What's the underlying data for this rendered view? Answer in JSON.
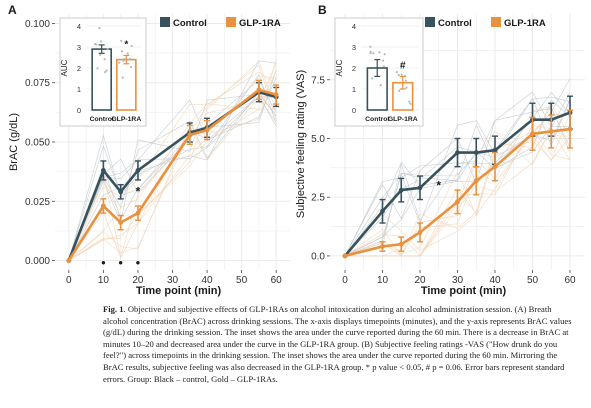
{
  "figure": {
    "colors": {
      "control": "#37515d",
      "glp1ra": "#e8913f",
      "grid": "#ebebeb",
      "faint_ctrl": "#b9c2c7",
      "faint_glp": "#f3cfae"
    },
    "panels": [
      {
        "label": "A",
        "ylabel": "BrAC (g/dL)",
        "xlabel": "Time point (min)",
        "yticks": [
          "0.000",
          "0.025",
          "0.050",
          "0.075",
          "0.100"
        ],
        "xticks": [
          "0",
          "10",
          "20",
          "30",
          "40",
          "50",
          "60"
        ],
        "legend": [
          "Control",
          "GLP-1RA"
        ],
        "annotations": {
          "dot_marker": "•",
          "star_marker": "*"
        },
        "inset": {
          "ylabel": "AUC",
          "yticks": [
            "0",
            "1",
            "2",
            "3",
            "4"
          ],
          "categories": [
            "Control",
            "GLP-1RA"
          ],
          "sig_marker": "*"
        }
      },
      {
        "label": "B",
        "ylabel": "Subjective feeling rating (VAS)",
        "xlabel": "Time point (min)",
        "yticks": [
          "0.0",
          "2.5",
          "5.0",
          "7.5"
        ],
        "xticks": [
          "0",
          "10",
          "20",
          "30",
          "40",
          "50",
          "60"
        ],
        "legend": [
          "Control",
          "GLP-1RA"
        ],
        "annotations": {
          "star_marker": "*"
        },
        "inset": {
          "ylabel": "AUC",
          "yticks": [
            "0",
            "1",
            "2",
            "3",
            "4"
          ],
          "categories": [
            "Control",
            "GLP-1RA"
          ],
          "sig_marker": "#"
        }
      }
    ]
  },
  "chart_data": [
    {
      "type": "line",
      "title": "",
      "xlabel": "Time point (min)",
      "ylabel": "BrAC (g/dL)",
      "xlim": [
        -4,
        64
      ],
      "ylim": [
        -0.004,
        0.104
      ],
      "x": [
        0,
        10,
        15,
        20,
        35,
        40,
        55,
        60
      ],
      "series": [
        {
          "name": "Control",
          "values": [
            0.0,
            0.038,
            0.029,
            0.038,
            0.054,
            0.056,
            0.071,
            0.069
          ],
          "errors": [
            0.0,
            0.004,
            0.003,
            0.004,
            0.004,
            0.004,
            0.004,
            0.004
          ]
        },
        {
          "name": "GLP-1RA",
          "values": [
            0.0,
            0.023,
            0.016,
            0.02,
            0.053,
            0.055,
            0.072,
            0.07
          ],
          "errors": [
            0.0,
            0.003,
            0.003,
            0.003,
            0.004,
            0.004,
            0.004,
            0.004
          ]
        }
      ],
      "significance_dots_x": [
        10,
        15,
        20
      ],
      "significance_star_x": [
        20
      ],
      "grid": true,
      "legend": "top",
      "inset": {
        "type": "bar",
        "categories": [
          "Control",
          "GLP-1RA"
        ],
        "values": [
          2.9,
          2.4
        ],
        "errors": [
          0.2,
          0.2
        ],
        "ylim": [
          0,
          4
        ]
      }
    },
    {
      "type": "line",
      "title": "",
      "xlabel": "Time point (min)",
      "ylabel": "Subjective feeling rating (VAS)",
      "xlim": [
        -4,
        64
      ],
      "ylim": [
        -0.6,
        10.3
      ],
      "x": [
        0,
        10,
        15,
        20,
        30,
        35,
        40,
        50,
        55,
        60
      ],
      "series": [
        {
          "name": "Control",
          "values": [
            0.0,
            1.9,
            2.8,
            2.9,
            4.4,
            4.4,
            4.5,
            5.8,
            5.8,
            6.1
          ],
          "errors": [
            0.0,
            0.5,
            0.5,
            0.5,
            0.6,
            0.6,
            0.6,
            0.7,
            0.7,
            0.7
          ]
        },
        {
          "name": "GLP-1RA",
          "values": [
            0.0,
            0.4,
            0.5,
            1.0,
            2.3,
            3.2,
            3.8,
            5.2,
            5.3,
            5.4
          ],
          "errors": [
            0.0,
            0.2,
            0.3,
            0.4,
            0.5,
            0.6,
            0.6,
            0.7,
            0.7,
            0.8
          ]
        }
      ],
      "significance_star_x": [
        25
      ],
      "grid": true,
      "legend": "top",
      "inset": {
        "type": "bar",
        "categories": [
          "Control",
          "GLP-1RA"
        ],
        "values": [
          2.0,
          1.3
        ],
        "errors": [
          0.4,
          0.3
        ],
        "ylim": [
          0,
          4
        ]
      }
    }
  ],
  "caption": {
    "fig_label": "Fig. 1",
    "text": ".  Objective and subjective effects of GLP-1RAs on alcohol intoxication during an alcohol administration session. (A) Breath alcohol concentration (BrAC) across drinking sessions. The x-axis displays timepoints (minutes), and the y-axis represents BrAC values (g/dL) during the drinking session. The inset shows the area under the curve reported during the 60 min. There is a decrease in BrAC at minutes 10–20 and decreased area under the curve in the GLP-1RA group. (B) Subjective feeling ratings -VAS (\"How drunk do you feel?\") across timepoints in the drinking session. The inset shows the area under the curve reported during the 60 min. Mirroring the BrAC results, subjective feeling was also decreased in the GLP-1RA group. * p value < 0.05, # p = 0.06. Error bars represent standard errors. Group: Black – control, Gold – GLP-1RAs."
  }
}
